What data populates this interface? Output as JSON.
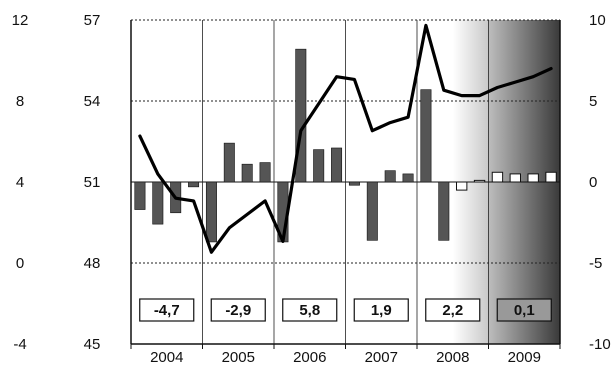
{
  "chart_data": {
    "type": "bar+line",
    "title": "",
    "years": [
      "2004",
      "2005",
      "2006",
      "2007",
      "2008",
      "2009"
    ],
    "quarters_per_year": 4,
    "axes": {
      "outer_left": {
        "ylim": [
          -4,
          12
        ],
        "ticks": [
          "12",
          "8",
          "4",
          "0",
          "-4"
        ]
      },
      "inner_left": {
        "ylim": [
          45,
          57
        ],
        "ticks": [
          "57",
          "54",
          "51",
          "48",
          "45"
        ]
      },
      "right": {
        "ylim": [
          -10,
          10
        ],
        "ticks": [
          "10",
          "5",
          "0",
          "-5",
          "-10"
        ]
      }
    },
    "grid": {
      "horizontal_dotted": true,
      "year_separators": true
    },
    "bar_series": {
      "axis": "right",
      "baseline": 0,
      "values": [
        -1.7,
        -2.6,
        -1.9,
        -0.3,
        -3.7,
        2.4,
        1.1,
        1.2,
        -3.7,
        8.2,
        2.0,
        2.1,
        -0.2,
        -3.6,
        0.7,
        0.5,
        5.7,
        -3.6,
        -0.5,
        0.1,
        0.6,
        0.5,
        0.5,
        0.6
      ],
      "forecast_from_index": 18,
      "colors": {
        "actual": "#555555",
        "forecast": "#ffffff",
        "stroke": "#111111"
      }
    },
    "line_series": {
      "axis": "inner_left",
      "values": [
        52.7,
        51.3,
        50.4,
        50.3,
        48.4,
        49.3,
        49.8,
        50.3,
        48.8,
        52.9,
        53.9,
        54.9,
        54.8,
        52.9,
        53.2,
        53.4,
        56.8,
        54.4,
        54.2,
        54.2,
        54.5,
        54.7,
        54.9,
        55.2
      ],
      "color": "#000000"
    },
    "annual_labels": [
      "-4,7",
      "-2,9",
      "5,8",
      "1,9",
      "2,2",
      "0,1"
    ],
    "forecast_shading": {
      "partial_year_index": 4,
      "partial_from_quarter": 2,
      "full_year_index": 5
    }
  }
}
